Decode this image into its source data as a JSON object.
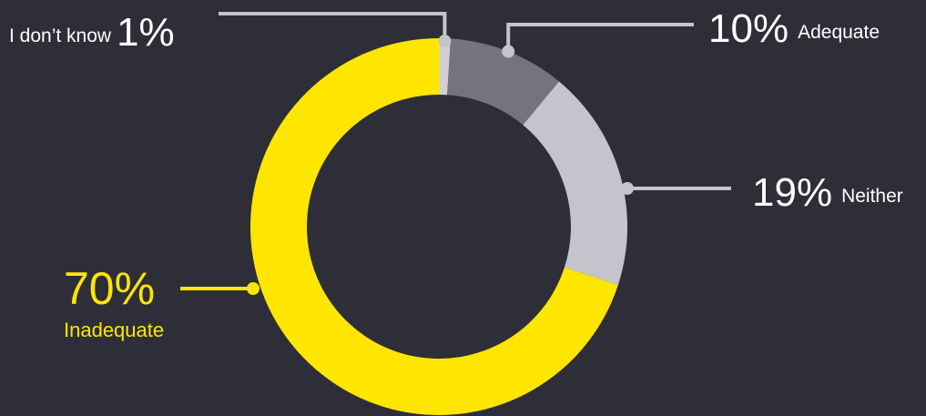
{
  "chart_data": {
    "type": "pie",
    "variant": "donut",
    "segments": [
      {
        "label": "I don’t know",
        "pct_text": "1%",
        "value": 1,
        "color": "#d0d0d4"
      },
      {
        "label": "Adequate",
        "pct_text": "10%",
        "value": 10,
        "color": "#747480"
      },
      {
        "label": "Neither",
        "pct_text": "19%",
        "value": 19,
        "color": "#c4c4cd"
      },
      {
        "label": "Inadequate",
        "pct_text": "70%",
        "value": 70,
        "color": "#ffe600"
      }
    ],
    "colors": {
      "background": "#2e2e38",
      "leader_light": "#c4c4cd",
      "leader_accent": "#ffe600"
    }
  }
}
